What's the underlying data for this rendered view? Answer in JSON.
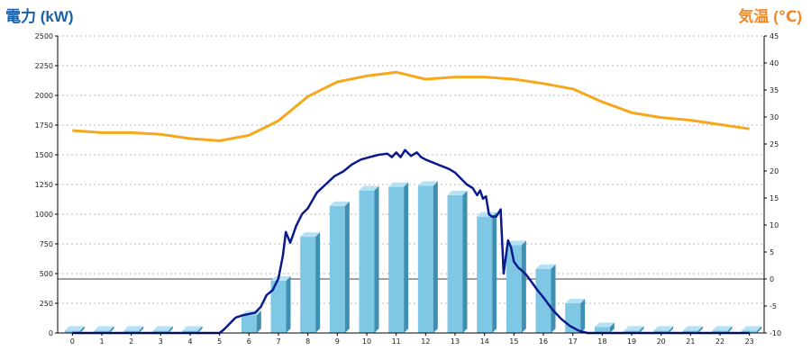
{
  "chart_data": {
    "type": "bar",
    "left_axis": {
      "title": "電力 (kW)",
      "ylim": [
        0,
        2500
      ],
      "ticks": [
        "0",
        "250",
        "500",
        "750",
        "1000",
        "1250",
        "1500",
        "1750",
        "2000",
        "2250",
        "2500"
      ]
    },
    "right_axis": {
      "title": "気温 (℃)",
      "ylim": [
        -10,
        45
      ],
      "ticks": [
        "-10",
        "-5",
        "0",
        "5",
        "10",
        "15",
        "20",
        "25",
        "30",
        "35",
        "40",
        "45"
      ]
    },
    "categories": [
      "0",
      "1",
      "2",
      "3",
      "4",
      "5",
      "6",
      "7",
      "8",
      "9",
      "10",
      "11",
      "12",
      "13",
      "14",
      "15",
      "16",
      "17",
      "18",
      "19",
      "20",
      "21",
      "22",
      "23"
    ],
    "series": [
      {
        "kind": "bar",
        "axis": "left",
        "values": [
          20,
          20,
          20,
          20,
          20,
          0,
          150,
          440,
          810,
          1070,
          1200,
          1230,
          1240,
          1160,
          980,
          740,
          540,
          250,
          50,
          20,
          20,
          20,
          20,
          20
        ]
      },
      {
        "kind": "line",
        "axis": "left",
        "x": [
          0,
          1,
          2,
          3,
          4,
          5,
          5.15,
          5.35,
          5.55,
          5.8,
          6.0,
          6.2,
          6.4,
          6.6,
          6.8,
          7.0,
          7.15,
          7.25,
          7.4,
          7.6,
          7.8,
          8.0,
          8.3,
          8.6,
          8.9,
          9.2,
          9.5,
          9.8,
          10.1,
          10.4,
          10.7,
          10.85,
          11.0,
          11.15,
          11.3,
          11.5,
          11.7,
          11.85,
          12.0,
          12.2,
          12.4,
          12.6,
          12.8,
          13.0,
          13.2,
          13.4,
          13.6,
          13.75,
          13.85,
          13.95,
          14.05,
          14.15,
          14.25,
          14.4,
          14.55,
          14.65,
          14.8,
          14.9,
          15.0,
          15.15,
          15.3,
          15.45,
          15.6,
          15.8,
          16.0,
          16.3,
          16.6,
          16.9,
          17.2,
          17.5,
          17.8,
          18.0,
          18.5,
          19,
          20,
          21,
          22,
          23
        ],
        "values": [
          0,
          0,
          0,
          0,
          0,
          0,
          30,
          80,
          130,
          150,
          160,
          170,
          220,
          320,
          360,
          460,
          650,
          850,
          760,
          900,
          1000,
          1050,
          1180,
          1250,
          1320,
          1360,
          1420,
          1460,
          1480,
          1500,
          1510,
          1480,
          1520,
          1480,
          1540,
          1490,
          1520,
          1480,
          1460,
          1440,
          1420,
          1400,
          1380,
          1350,
          1300,
          1250,
          1220,
          1160,
          1200,
          1130,
          1150,
          1000,
          980,
          980,
          1040,
          500,
          780,
          720,
          600,
          550,
          520,
          480,
          430,
          360,
          300,
          200,
          120,
          60,
          20,
          0,
          0,
          0,
          0,
          0,
          0,
          0,
          0,
          0
        ]
      },
      {
        "kind": "line",
        "axis": "right",
        "x": [
          0,
          1,
          2,
          3,
          4,
          5,
          6,
          7,
          8,
          9,
          10,
          11,
          12,
          13,
          14,
          15,
          16,
          17,
          18,
          19,
          20,
          21,
          22,
          23
        ],
        "values": [
          27.5,
          27.1,
          27.1,
          26.8,
          26.0,
          25.6,
          26.6,
          29.3,
          33.8,
          36.5,
          37.6,
          38.3,
          37.0,
          37.4,
          37.4,
          37.0,
          36.2,
          35.2,
          32.8,
          30.8,
          29.9,
          29.4,
          28.6,
          27.8
        ]
      }
    ],
    "colors": {
      "bars": "#7ec8e6",
      "bars_dark": "#3f8fb3",
      "bars_top": "#b4e2f4",
      "power_line": "#0a1a8c",
      "temp_line": "#f5a81c",
      "left_title": "#1a5fa8",
      "right_title": "#ef8a2a"
    },
    "grid": true
  }
}
